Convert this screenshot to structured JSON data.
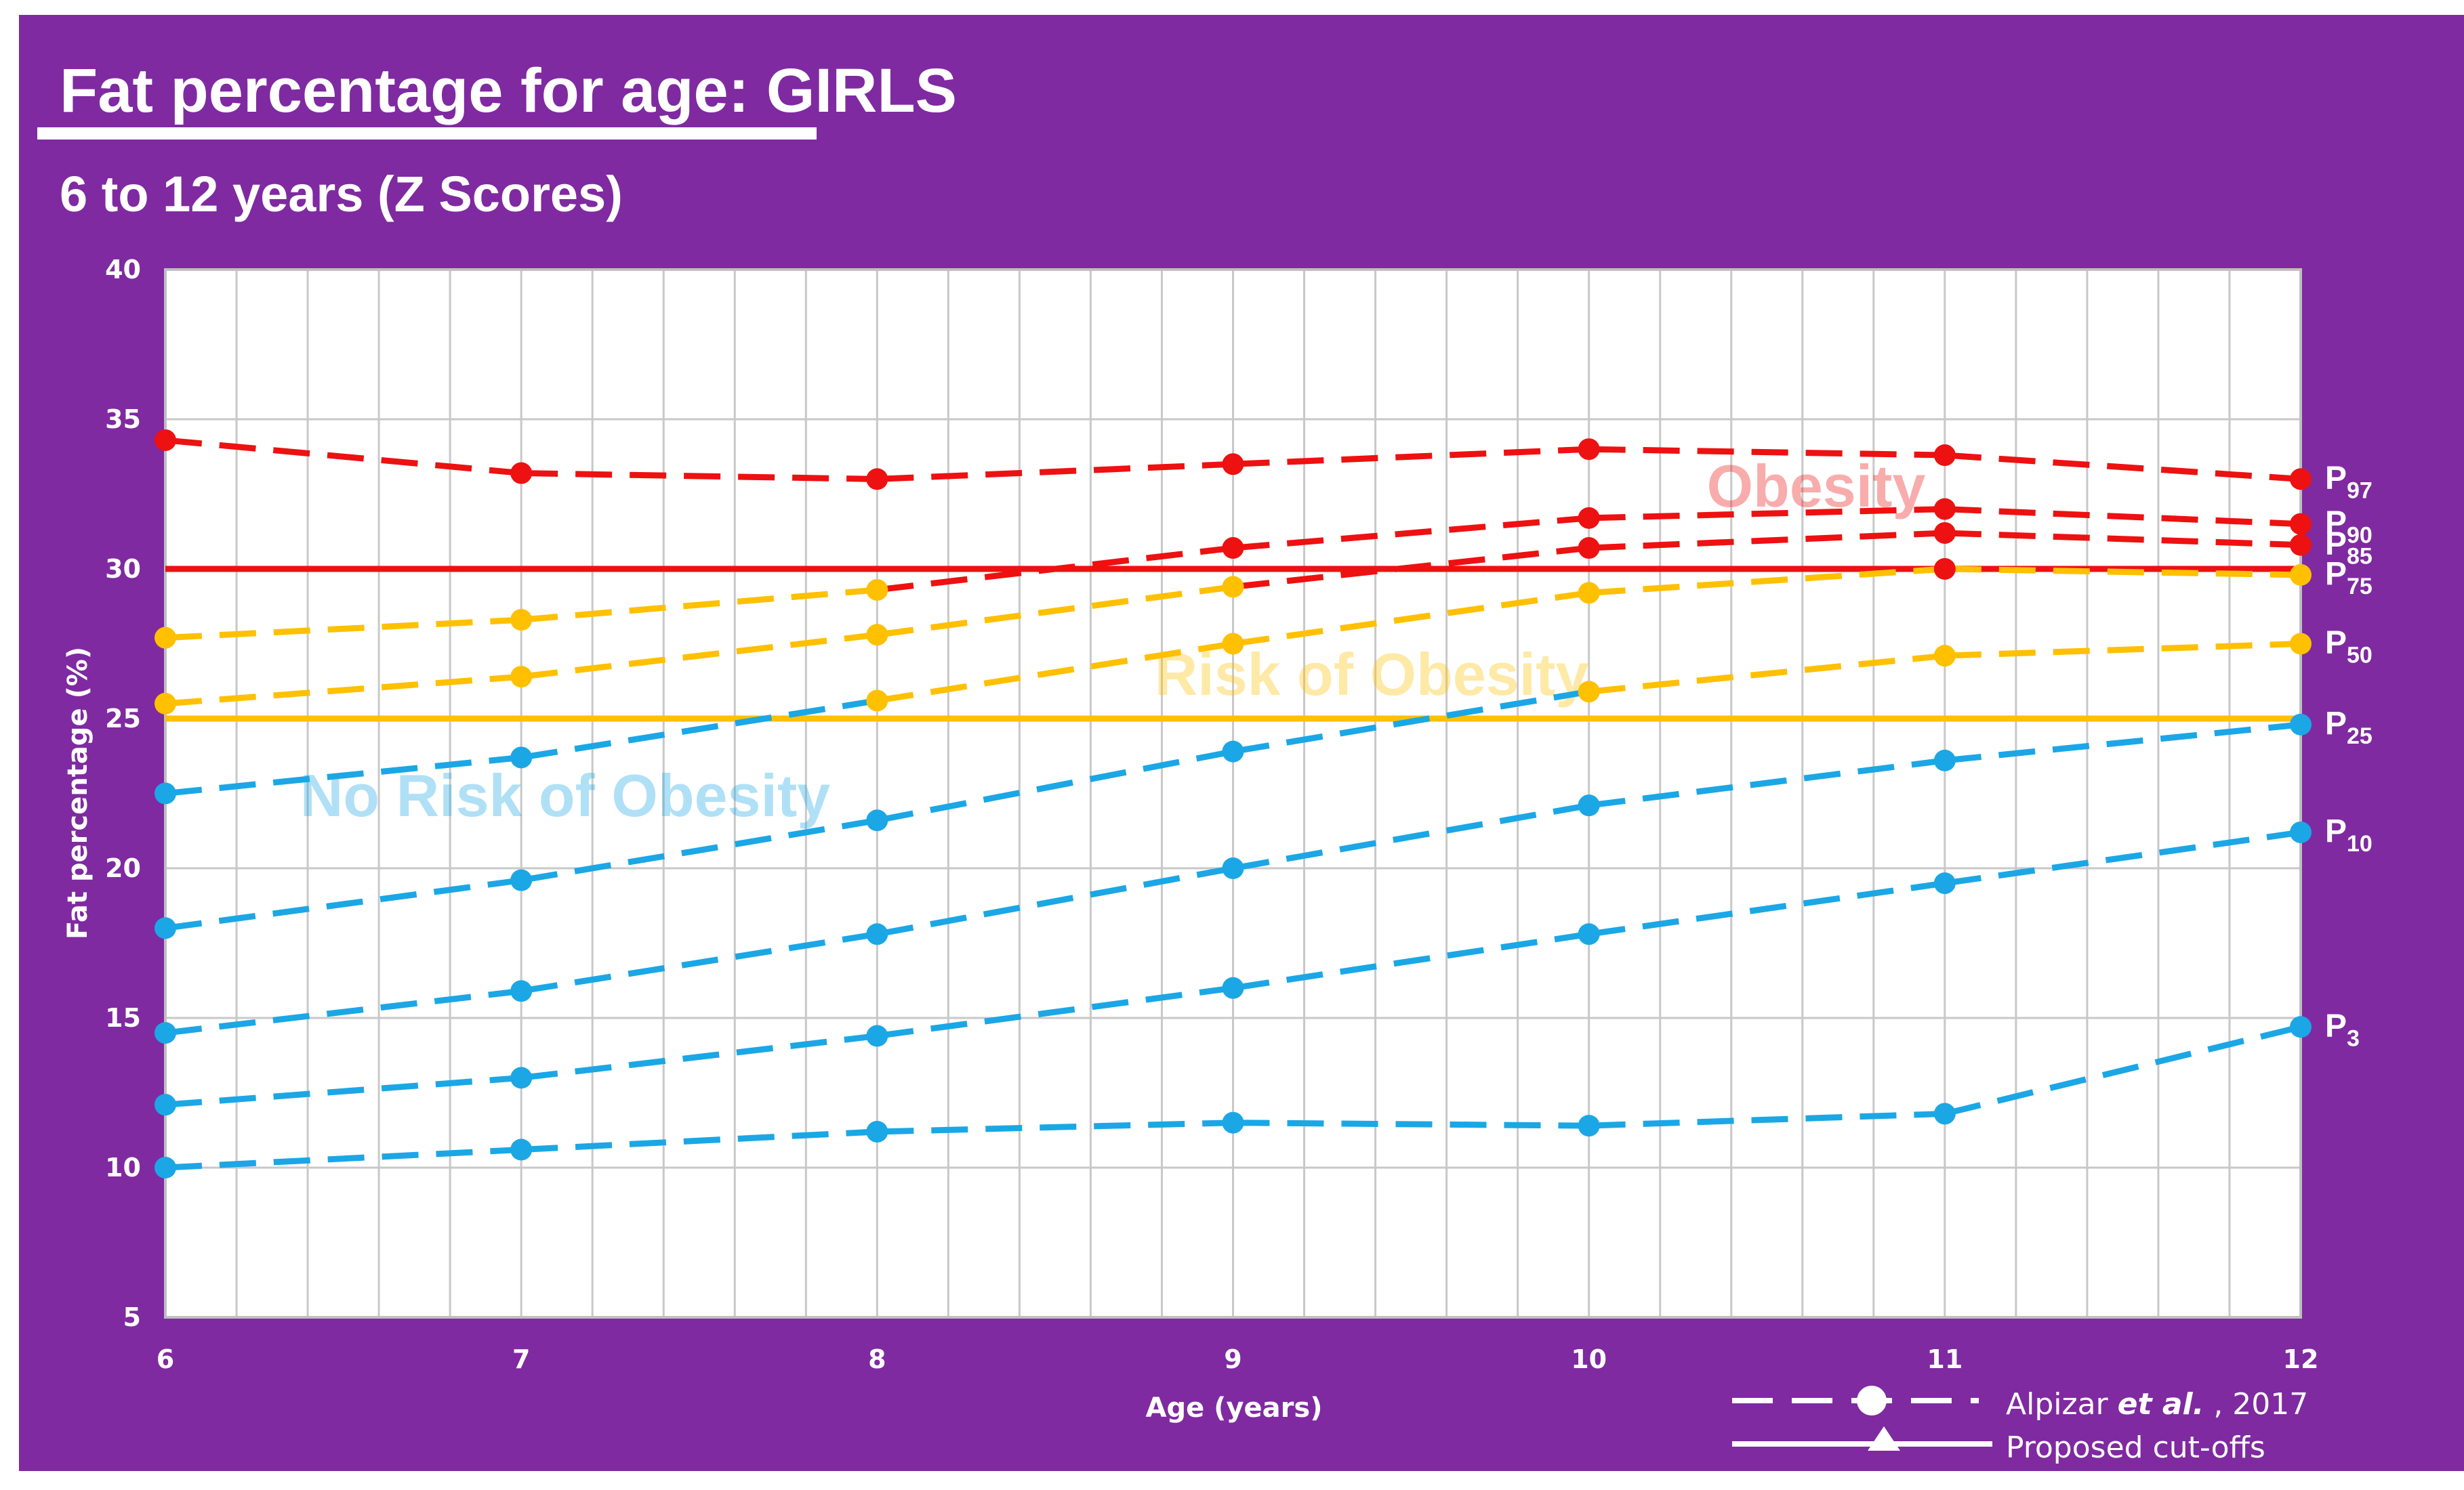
{
  "title": "Fat percentage for age: GIRLS",
  "subtitle": "6 to 12 years (Z Scores)",
  "colors": {
    "background": "#7f2aa0",
    "obesity": "#ee1111",
    "risk": "#ffc000",
    "normal": "#1ba6e6",
    "plot_bg": "#ffffff",
    "grid": "#c8c8c8"
  },
  "zones": {
    "obesity": "Obesity",
    "risk": "Risk of Obesity",
    "no_risk": "No Risk of Obesity"
  },
  "legend": {
    "reference_author": "Alpizar ",
    "reference_etal": "et al.",
    "reference_year": ", 2017",
    "cutoffs": "Proposed cut-offs"
  },
  "chart_data": {
    "type": "line",
    "title": "Fat percentage for age: GIRLS",
    "subtitle": "6 to 12 years (Z Scores)",
    "xlabel": "Age (years)",
    "ylabel": "Fat percentage (%)",
    "x": [
      6,
      7,
      8,
      9,
      10,
      11,
      12
    ],
    "xlim": [
      6,
      12
    ],
    "ylim": [
      5,
      40
    ],
    "yticks": [
      5,
      10,
      15,
      20,
      25,
      30,
      35,
      40
    ],
    "xticks": [
      6,
      7,
      8,
      9,
      10,
      11,
      12
    ],
    "series": [
      {
        "name": "P97",
        "label": "P",
        "sub": "97",
        "values": [
          34.3,
          33.2,
          33.0,
          33.5,
          34.0,
          33.8,
          33.0
        ]
      },
      {
        "name": "P90",
        "label": "P",
        "sub": "90",
        "values": [
          27.7,
          28.3,
          29.3,
          30.7,
          31.7,
          32.0,
          31.5
        ]
      },
      {
        "name": "P85",
        "label": "P",
        "sub": "85",
        "values": [
          25.5,
          26.4,
          27.8,
          29.4,
          30.7,
          31.2,
          30.8
        ]
      },
      {
        "name": "P75",
        "label": "P",
        "sub": "75",
        "values": [
          22.5,
          23.7,
          25.6,
          27.5,
          29.2,
          30.0,
          29.8
        ]
      },
      {
        "name": "P50",
        "label": "P",
        "sub": "50",
        "values": [
          18.0,
          19.6,
          21.6,
          23.9,
          25.9,
          27.1,
          27.5
        ]
      },
      {
        "name": "P25",
        "label": "P",
        "sub": "25",
        "values": [
          14.5,
          15.9,
          17.8,
          20.0,
          22.1,
          23.6,
          24.8
        ]
      },
      {
        "name": "P10",
        "label": "P",
        "sub": "10",
        "values": [
          12.1,
          13.0,
          14.4,
          16.0,
          17.8,
          19.5,
          21.2
        ]
      },
      {
        "name": "P3",
        "label": "P",
        "sub": "3",
        "values": [
          10.0,
          10.6,
          11.2,
          11.5,
          11.4,
          11.8,
          14.7
        ]
      }
    ],
    "cutoffs": [
      {
        "name": "Obesity cut-off",
        "value": 30
      },
      {
        "name": "Risk of obesity cut-off",
        "value": 25
      }
    ]
  }
}
